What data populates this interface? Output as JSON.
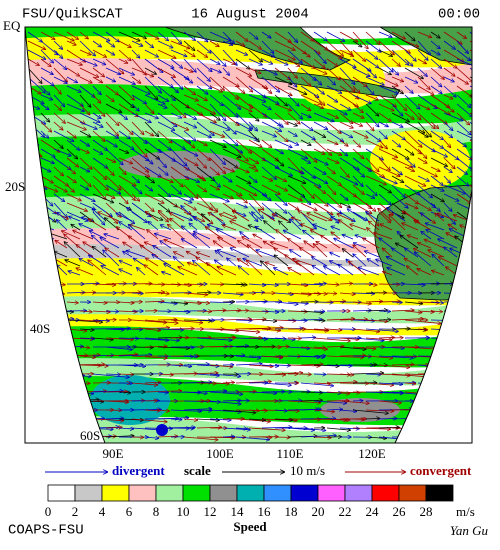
{
  "header": {
    "left": "FSU/QuikSCAT",
    "center": "16 August 2004",
    "right": "00:00"
  },
  "map": {
    "lat_labels": [
      "EQ",
      "20S",
      "40S",
      "60S"
    ],
    "lon_labels": [
      "90E",
      "100E",
      "110E",
      "120E"
    ]
  },
  "legend": {
    "divergent": "divergent",
    "scale": "scale",
    "scale_value": "10 m/s",
    "convergent": "convergent",
    "ticks": [
      0,
      2,
      4,
      6,
      8,
      10,
      12,
      14,
      16,
      18,
      20,
      22,
      24,
      26,
      28
    ],
    "colors": [
      "#ffffff",
      "#c8c8c8",
      "#ffff00",
      "#ffc0c0",
      "#a0f0a0",
      "#00e000",
      "#909090",
      "#00b0b0",
      "#3090ff",
      "#0000d0",
      "#ff60ff",
      "#b080ff",
      "#ff0000",
      "#d04000",
      "#000000"
    ],
    "unit": "m/s",
    "label": "Speed"
  },
  "footer": {
    "left": "COAPS-FSU",
    "right": "Yan Gu"
  }
}
